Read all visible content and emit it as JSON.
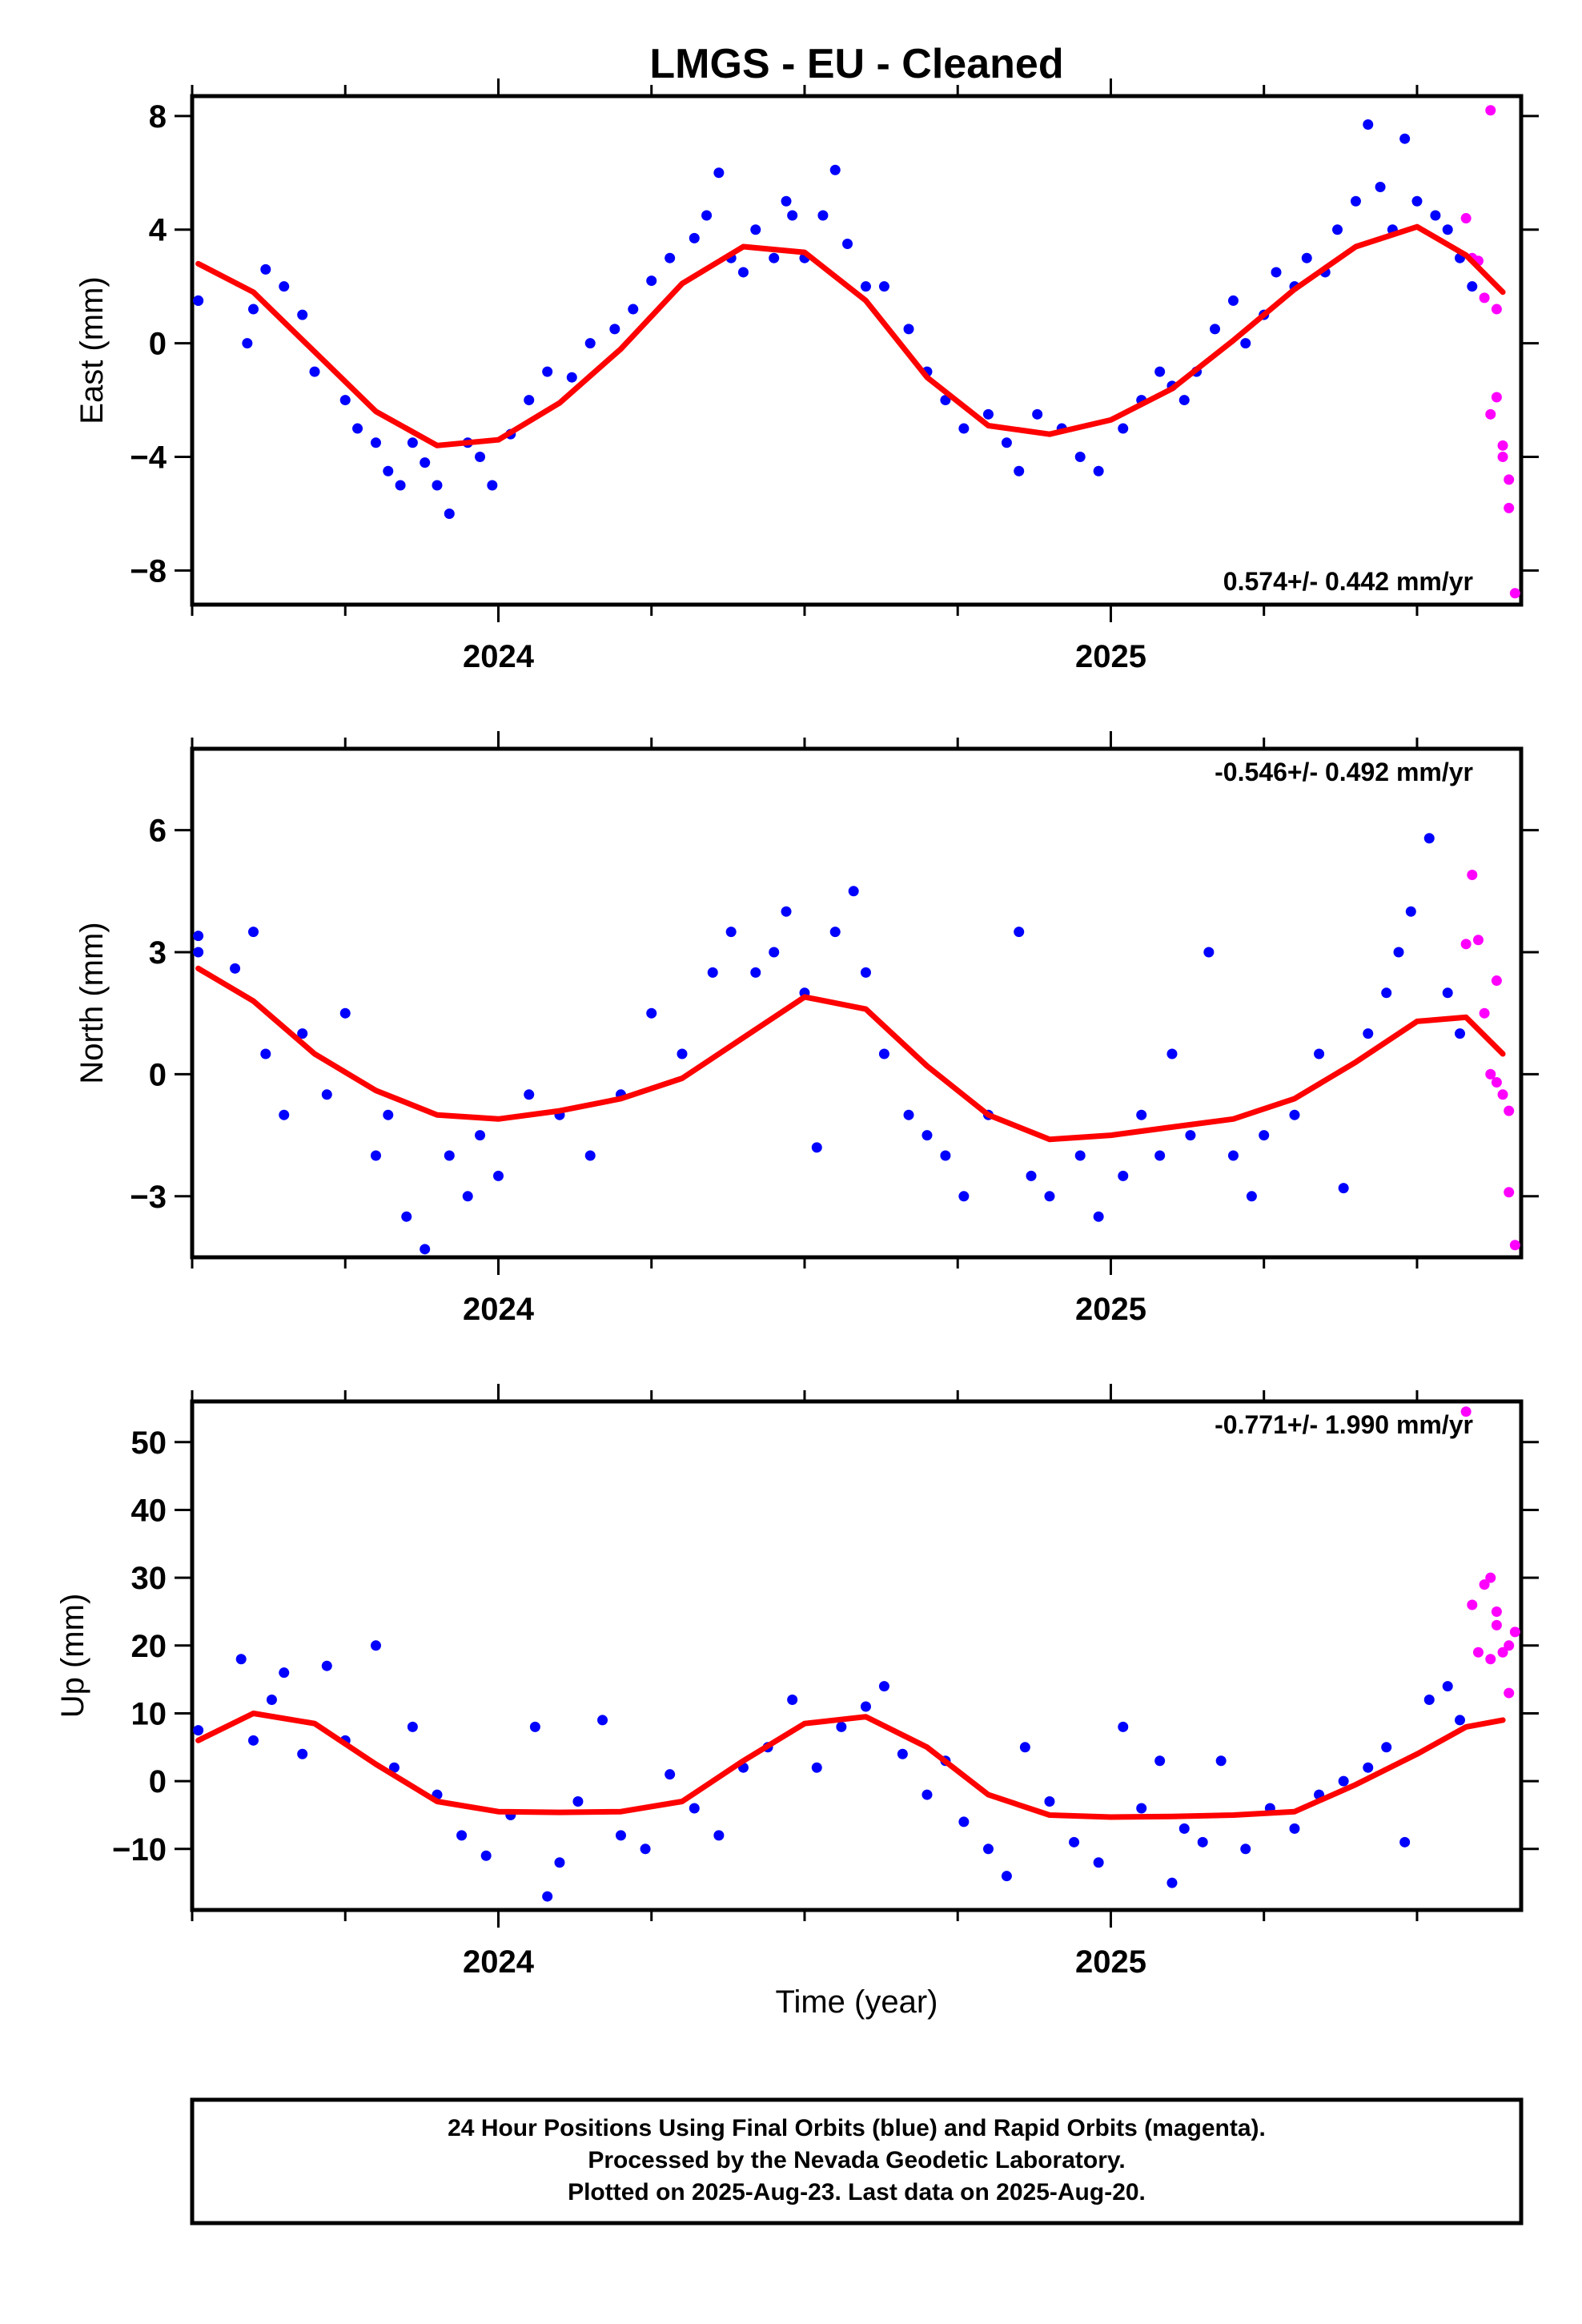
{
  "title": "LMGS  - EU - Cleaned",
  "colors": {
    "final": "#0000ff",
    "rapid": "#ff00ff",
    "fit": "#ff0000",
    "axis": "#000000"
  },
  "xlabel": "Time (year)",
  "x_tick_labels": [
    "2024",
    "2025"
  ],
  "chart_data": [
    {
      "type": "scatter",
      "name_hint": "east",
      "ylabel": "East (mm)",
      "ylim": [
        -9.2,
        8.7
      ],
      "yticks": [
        8,
        4,
        0,
        -4,
        -8
      ],
      "ytick_labels": [
        "8",
        "4",
        "0",
        "−4",
        "−8"
      ],
      "xlim": [
        2023.5,
        2025.67
      ],
      "rate_text": "0.574+/- 0.442 mm/yr",
      "rate_position": "bottom-right",
      "fit": {
        "x": [
          2023.51,
          2023.6,
          2023.7,
          2023.8,
          2023.9,
          2024.0,
          2024.1,
          2024.2,
          2024.3,
          2024.4,
          2024.5,
          2024.6,
          2024.7,
          2024.8,
          2024.9,
          2025.0,
          2025.1,
          2025.2,
          2025.3,
          2025.4,
          2025.5,
          2025.58,
          2025.64
        ],
        "y": [
          2.8,
          1.8,
          -0.3,
          -2.4,
          -3.6,
          -3.4,
          -2.1,
          -0.2,
          2.1,
          3.4,
          3.2,
          1.5,
          -1.2,
          -2.9,
          -3.2,
          -2.7,
          -1.6,
          0.1,
          1.9,
          3.4,
          4.1,
          3.1,
          1.8
        ]
      },
      "final_series": {
        "x": [
          2023.51,
          2023.51,
          2023.59,
          2023.6,
          2023.62,
          2023.65,
          2023.68,
          2023.7,
          2023.75,
          2023.77,
          2023.8,
          2023.82,
          2023.84,
          2023.86,
          2023.88,
          2023.9,
          2023.92,
          2023.95,
          2023.97,
          2023.99,
          2024.02,
          2024.05,
          2024.08,
          2024.12,
          2024.15,
          2024.19,
          2024.22,
          2024.25,
          2024.28,
          2024.32,
          2024.34,
          2024.36,
          2024.38,
          2024.4,
          2024.42,
          2024.45,
          2024.47,
          2024.48,
          2024.5,
          2024.53,
          2024.55,
          2024.57,
          2024.6,
          2024.63,
          2024.67,
          2024.7,
          2024.73,
          2024.76,
          2024.8,
          2024.83,
          2024.85,
          2024.88,
          2024.92,
          2024.95,
          2024.98,
          2025.02,
          2025.05,
          2025.08,
          2025.1,
          2025.12,
          2025.14,
          2025.17,
          2025.2,
          2025.22,
          2025.25,
          2025.27,
          2025.3,
          2025.32,
          2025.35,
          2025.37,
          2025.4,
          2025.42,
          2025.44,
          2025.46,
          2025.48,
          2025.5,
          2025.53,
          2025.55,
          2025.57,
          2025.59
        ],
        "y": [
          1.5,
          1.5,
          0.0,
          1.2,
          2.6,
          2.0,
          1.0,
          -1.0,
          -2.0,
          -3.0,
          -3.5,
          -4.5,
          -5.0,
          -3.5,
          -4.2,
          -5.0,
          -6.0,
          -3.5,
          -4.0,
          -5.0,
          -3.2,
          -2.0,
          -1.0,
          -1.2,
          0.0,
          0.5,
          1.2,
          2.2,
          3.0,
          3.7,
          4.5,
          6.0,
          3.0,
          2.5,
          4.0,
          3.0,
          5.0,
          4.5,
          3.0,
          4.5,
          6.1,
          3.5,
          2.0,
          2.0,
          0.5,
          -1.0,
          -2.0,
          -3.0,
          -2.5,
          -3.5,
          -4.5,
          -2.5,
          -3.0,
          -4.0,
          -4.5,
          -3.0,
          -2.0,
          -1.0,
          -1.5,
          -2.0,
          -1.0,
          0.5,
          1.5,
          0.0,
          1.0,
          2.5,
          2.0,
          3.0,
          2.5,
          4.0,
          5.0,
          7.7,
          5.5,
          4.0,
          7.2,
          5.0,
          4.5,
          4.0,
          3.0,
          2.0
        ]
      },
      "rapid_series": {
        "x": [
          2025.58,
          2025.59,
          2025.6,
          2025.61,
          2025.62,
          2025.62,
          2025.63,
          2025.63,
          2025.64,
          2025.64,
          2025.65,
          2025.65,
          2025.66
        ],
        "y": [
          4.4,
          3.0,
          2.9,
          1.6,
          8.2,
          -2.5,
          1.2,
          -1.9,
          -3.6,
          -4.0,
          -4.8,
          -5.8,
          -8.8
        ]
      }
    },
    {
      "type": "scatter",
      "name_hint": "north",
      "ylabel": "North (mm)",
      "ylim": [
        -4.5,
        8.0
      ],
      "yticks": [
        6,
        3,
        0,
        -3
      ],
      "ytick_labels": [
        "6",
        "3",
        "0",
        "−3"
      ],
      "xlim": [
        2023.5,
        2025.67
      ],
      "rate_text": "-0.546+/- 0.492 mm/yr",
      "rate_position": "top-right",
      "fit": {
        "x": [
          2023.51,
          2023.6,
          2023.7,
          2023.8,
          2023.9,
          2024.0,
          2024.1,
          2024.2,
          2024.3,
          2024.4,
          2024.5,
          2024.6,
          2024.7,
          2024.8,
          2024.9,
          2025.0,
          2025.1,
          2025.2,
          2025.3,
          2025.4,
          2025.5,
          2025.58,
          2025.64
        ],
        "y": [
          2.6,
          1.8,
          0.5,
          -0.4,
          -1.0,
          -1.1,
          -0.9,
          -0.6,
          -0.1,
          0.9,
          1.9,
          1.6,
          0.2,
          -1.0,
          -1.6,
          -1.5,
          -1.3,
          -1.1,
          -0.6,
          0.3,
          1.3,
          1.4,
          0.5
        ]
      },
      "final_series": {
        "x": [
          2023.51,
          2023.51,
          2023.57,
          2023.6,
          2023.62,
          2023.65,
          2023.68,
          2023.72,
          2023.75,
          2023.8,
          2023.82,
          2023.85,
          2023.88,
          2023.92,
          2023.95,
          2023.97,
          2024.0,
          2024.05,
          2024.1,
          2024.15,
          2024.2,
          2024.25,
          2024.3,
          2024.35,
          2024.38,
          2024.42,
          2024.45,
          2024.47,
          2024.5,
          2024.52,
          2024.55,
          2024.58,
          2024.6,
          2024.63,
          2024.67,
          2024.7,
          2024.73,
          2024.76,
          2024.8,
          2024.85,
          2024.87,
          2024.9,
          2024.95,
          2024.98,
          2025.02,
          2025.05,
          2025.08,
          2025.1,
          2025.13,
          2025.16,
          2025.2,
          2025.23,
          2025.25,
          2025.3,
          2025.34,
          2025.38,
          2025.42,
          2025.45,
          2025.47,
          2025.49,
          2025.52,
          2025.55,
          2025.57
        ],
        "y": [
          3.0,
          3.4,
          2.6,
          3.5,
          0.5,
          -1.0,
          1.0,
          -0.5,
          1.5,
          -2.0,
          -1.0,
          -3.5,
          -4.3,
          -2.0,
          -3.0,
          -1.5,
          -2.5,
          -0.5,
          -1.0,
          -2.0,
          -0.5,
          1.5,
          0.5,
          2.5,
          3.5,
          2.5,
          3.0,
          4.0,
          2.0,
          -1.8,
          3.5,
          4.5,
          2.5,
          0.5,
          -1.0,
          -1.5,
          -2.0,
          -3.0,
          -1.0,
          3.5,
          -2.5,
          -3.0,
          -2.0,
          -3.5,
          -2.5,
          -1.0,
          -2.0,
          0.5,
          -1.5,
          3.0,
          -2.0,
          -3.0,
          -1.5,
          -1.0,
          0.5,
          -2.8,
          1.0,
          2.0,
          3.0,
          4.0,
          5.8,
          2.0,
          1.0
        ]
      },
      "rapid_series": {
        "x": [
          2025.58,
          2025.59,
          2025.6,
          2025.61,
          2025.62,
          2025.63,
          2025.63,
          2025.64,
          2025.65,
          2025.65,
          2025.66
        ],
        "y": [
          3.2,
          4.9,
          3.3,
          1.5,
          0.0,
          2.3,
          -0.2,
          -0.5,
          -2.9,
          -0.9,
          -4.2
        ]
      }
    },
    {
      "type": "scatter",
      "name_hint": "up",
      "ylabel": "Up (mm)",
      "ylim": [
        -19,
        56
      ],
      "yticks": [
        50,
        40,
        30,
        20,
        10,
        0,
        -10
      ],
      "ytick_labels": [
        "50",
        "40",
        "30",
        "20",
        "10",
        "0",
        "−10"
      ],
      "xlim": [
        2023.5,
        2025.67
      ],
      "rate_text": "-0.771+/- 1.990 mm/yr",
      "rate_position": "top-right",
      "fit": {
        "x": [
          2023.51,
          2023.6,
          2023.7,
          2023.8,
          2023.9,
          2024.0,
          2024.1,
          2024.2,
          2024.3,
          2024.4,
          2024.5,
          2024.6,
          2024.7,
          2024.8,
          2024.9,
          2025.0,
          2025.1,
          2025.2,
          2025.3,
          2025.4,
          2025.5,
          2025.58,
          2025.64
        ],
        "y": [
          6.0,
          10.0,
          8.5,
          2.5,
          -3.0,
          -4.5,
          -4.6,
          -4.5,
          -3.0,
          3.0,
          8.5,
          9.5,
          5.0,
          -2.0,
          -5.0,
          -5.3,
          -5.2,
          -5.0,
          -4.5,
          -0.5,
          4.0,
          8.0,
          9.0
        ]
      },
      "final_series": {
        "x": [
          2023.51,
          2023.58,
          2023.6,
          2023.63,
          2023.65,
          2023.68,
          2023.72,
          2023.75,
          2023.8,
          2023.83,
          2023.86,
          2023.9,
          2023.94,
          2023.98,
          2024.02,
          2024.06,
          2024.08,
          2024.1,
          2024.13,
          2024.17,
          2024.2,
          2024.24,
          2024.28,
          2024.32,
          2024.36,
          2024.4,
          2024.44,
          2024.48,
          2024.52,
          2024.56,
          2024.6,
          2024.63,
          2024.66,
          2024.7,
          2024.73,
          2024.76,
          2024.8,
          2024.83,
          2024.86,
          2024.9,
          2024.94,
          2024.98,
          2025.02,
          2025.05,
          2025.08,
          2025.1,
          2025.12,
          2025.15,
          2025.18,
          2025.22,
          2025.26,
          2025.3,
          2025.34,
          2025.38,
          2025.42,
          2025.45,
          2025.48,
          2025.52,
          2025.55,
          2025.57
        ],
        "y": [
          7.5,
          18.0,
          6.0,
          12.0,
          16.0,
          4.0,
          17.0,
          6.0,
          20.0,
          2.0,
          8.0,
          -2.0,
          -8.0,
          -11.0,
          -5.0,
          8.0,
          -17.0,
          -12.0,
          -3.0,
          9.0,
          -8.0,
          -10.0,
          1.0,
          -4.0,
          -8.0,
          2.0,
          5.0,
          12.0,
          2.0,
          8.0,
          11.0,
          14.0,
          4.0,
          -2.0,
          3.0,
          -6.0,
          -10.0,
          -14.0,
          5.0,
          -3.0,
          -9.0,
          -12.0,
          8.0,
          -4.0,
          3.0,
          -15.0,
          -7.0,
          -9.0,
          3.0,
          -10.0,
          -4.0,
          -7.0,
          -2.0,
          0.0,
          2.0,
          5.0,
          -9.0,
          12.0,
          14.0,
          9.0
        ]
      },
      "rapid_series": {
        "x": [
          2025.58,
          2025.59,
          2025.6,
          2025.61,
          2025.62,
          2025.62,
          2025.63,
          2025.63,
          2025.64,
          2025.65,
          2025.65,
          2025.66
        ],
        "y": [
          54.5,
          26.0,
          19.0,
          29.0,
          18.0,
          30.0,
          23.0,
          25.0,
          19.0,
          20.0,
          13.0,
          22.0
        ]
      }
    }
  ],
  "footer": {
    "line1": "24 Hour Positions Using Final Orbits (blue) and Rapid Orbits (magenta).",
    "line2": "Processed by the Nevada Geodetic Laboratory.",
    "line3": "Plotted on 2025-Aug-23. Last data on 2025-Aug-20."
  }
}
